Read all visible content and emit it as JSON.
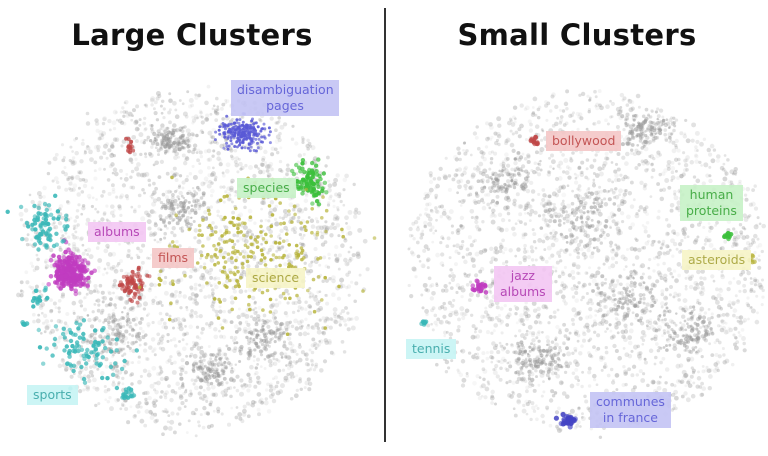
{
  "chart_data": [
    {
      "type": "scatter",
      "title": "Large Clusters",
      "background_points": {
        "color": "#9a9a9a"
      },
      "clusters": [
        {
          "label": "disambiguation\npages",
          "color": "#5a5ad6",
          "box_color": "#c5c5f5",
          "text_color": "#5a5ad6"
        },
        {
          "label": "species",
          "color": "#3bbf3b",
          "box_color": "#c8f2c8",
          "text_color": "#3aa83a"
        },
        {
          "label": "albums",
          "color": "#c03cc0",
          "box_color": "#f4c8f4",
          "text_color": "#b23ab2"
        },
        {
          "label": "films",
          "color": "#c04848",
          "box_color": "#f5c8c8",
          "text_color": "#c04848"
        },
        {
          "label": "science",
          "color": "#b8b43c",
          "box_color": "#f7f5c8",
          "text_color": "#a8a43a"
        },
        {
          "label": "sports",
          "color": "#3ab8b8",
          "box_color": "#c8f5f5",
          "text_color": "#3aa8a8"
        }
      ]
    },
    {
      "type": "scatter",
      "title": "Small Clusters",
      "background_points": {
        "color": "#9a9a9a"
      },
      "clusters": [
        {
          "label": "bollywood",
          "color": "#c04848",
          "box_color": "#f5c8c8",
          "text_color": "#c04848"
        },
        {
          "label": "human\nproteins",
          "color": "#3bbf3b",
          "box_color": "#c8f2c8",
          "text_color": "#3aa83a"
        },
        {
          "label": "jazz\nalbums",
          "color": "#c03cc0",
          "box_color": "#f4c8f4",
          "text_color": "#b23ab2"
        },
        {
          "label": "asteroids",
          "color": "#b8b43c",
          "box_color": "#f7f5c8",
          "text_color": "#a8a43a"
        },
        {
          "label": "tennis",
          "color": "#3ab8b8",
          "box_color": "#c8f5f5",
          "text_color": "#3aa8a8"
        },
        {
          "label": "communes\nin france",
          "color": "#4444c4",
          "box_color": "#c5c5f5",
          "text_color": "#5a5ad6"
        }
      ]
    }
  ]
}
